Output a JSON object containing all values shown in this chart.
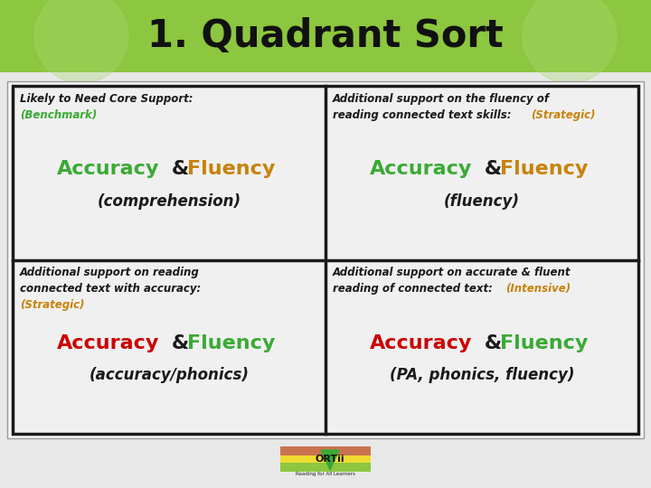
{
  "title": "1. Quadrant Sort",
  "title_fontsize": 30,
  "title_bg_color": "#8dc63f",
  "content_bg": "#f2f2f2",
  "border_color": "#1a1a1a",
  "quadrants": [
    {
      "label_lines": [
        "Likely to Need Core Support:",
        "(Benchmark)"
      ],
      "label_colors": [
        "#1a1a1a",
        "#3aaa35"
      ],
      "acc_color": "#3aaa35",
      "flu_color": "#c8820a",
      "amp_color": "#1a1a1a",
      "sub_text": "(comprehension)",
      "col": 0,
      "row": 1
    },
    {
      "label_lines": [
        "Additional support on the fluency of",
        "reading connected text skills: (Strategic)"
      ],
      "label_colors": [
        "#1a1a1a",
        "#1a1a1a"
      ],
      "label_inline_color": "#c8820a",
      "label_inline_word": "(Strategic)",
      "acc_color": "#3aaa35",
      "flu_color": "#c8820a",
      "amp_color": "#1a1a1a",
      "sub_text": "(fluency)",
      "col": 1,
      "row": 1
    },
    {
      "label_lines": [
        "Additional support on reading",
        "connected text with accuracy:",
        "(Strategic)"
      ],
      "label_colors": [
        "#1a1a1a",
        "#1a1a1a",
        "#c8820a"
      ],
      "acc_color": "#cc0000",
      "flu_color": "#3aaa35",
      "amp_color": "#1a1a1a",
      "sub_text": "(accuracy/phonics)",
      "col": 0,
      "row": 0
    },
    {
      "label_lines": [
        "Additional support on accurate & fluent",
        "reading of connected text: (Intensive)"
      ],
      "label_colors": [
        "#1a1a1a",
        "#1a1a1a"
      ],
      "label_inline_color": "#c8820a",
      "label_inline_word": "(Intensive)",
      "acc_color": "#cc0000",
      "flu_color": "#3aaa35",
      "amp_color": "#1a1a1a",
      "sub_text": "(PA, phonics, fluency)",
      "col": 1,
      "row": 0
    }
  ],
  "af_fontsize": 16,
  "sub_fontsize": 12,
  "label_fontsize": 8.5
}
